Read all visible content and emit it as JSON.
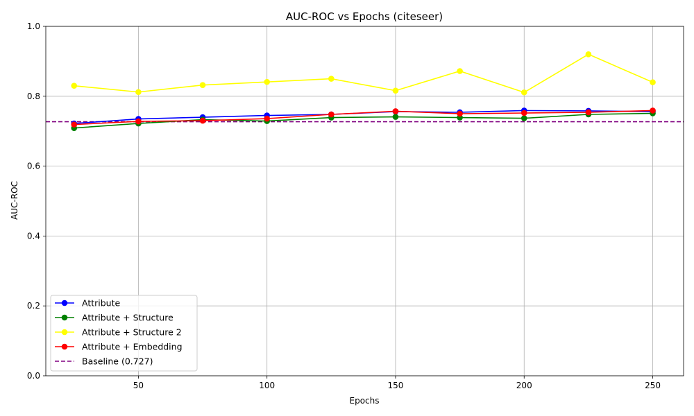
{
  "chart_data": {
    "type": "line",
    "title": "AUC-ROC vs Epochs (citeseer)",
    "xlabel": "Epochs",
    "ylabel": "AUC-ROC",
    "xlim": [
      14,
      262
    ],
    "ylim": [
      0.0,
      1.0
    ],
    "xticks": [
      50,
      100,
      150,
      200,
      250
    ],
    "yticks": [
      0.0,
      0.2,
      0.4,
      0.6,
      0.8,
      1.0
    ],
    "xtick_labels": [
      "50",
      "100",
      "150",
      "200",
      "250"
    ],
    "ytick_labels": [
      "0.0",
      "0.2",
      "0.4",
      "0.6",
      "0.8",
      "1.0"
    ],
    "grid": true,
    "legend_position": "lower-left",
    "x": [
      25,
      50,
      75,
      100,
      125,
      150,
      175,
      200,
      225,
      250
    ],
    "series": [
      {
        "name": "Attribute",
        "color": "#0000ff",
        "marker": "circle",
        "values": [
          0.722,
          0.735,
          0.74,
          0.745,
          0.748,
          0.756,
          0.754,
          0.759,
          0.758,
          0.756
        ]
      },
      {
        "name": "Attribute + Structure",
        "color": "#008000",
        "marker": "circle",
        "values": [
          0.709,
          0.722,
          0.733,
          0.729,
          0.739,
          0.741,
          0.739,
          0.737,
          0.748,
          0.751
        ]
      },
      {
        "name": "Attribute + Structure 2",
        "color": "#ffff00",
        "marker": "circle",
        "values": [
          0.83,
          0.812,
          0.832,
          0.841,
          0.85,
          0.816,
          0.872,
          0.811,
          0.92,
          0.84
        ]
      },
      {
        "name": "Attribute + Embedding",
        "color": "#ff0000",
        "marker": "circle",
        "values": [
          0.719,
          0.728,
          0.73,
          0.736,
          0.748,
          0.757,
          0.75,
          0.752,
          0.754,
          0.759
        ]
      }
    ],
    "baseline": {
      "name": "Baseline (0.727)",
      "value": 0.727,
      "color": "#800080",
      "style": "dashed"
    }
  }
}
